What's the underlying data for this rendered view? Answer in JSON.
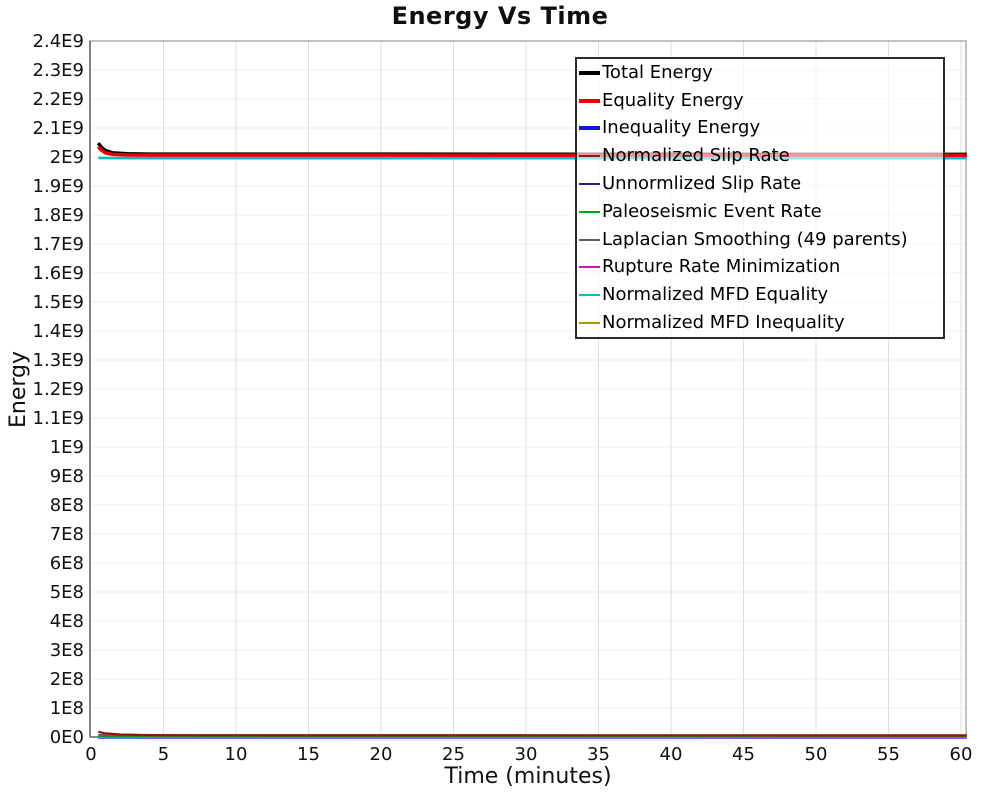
{
  "window": {
    "title": "Energy Vs Time"
  },
  "chart_data": {
    "type": "line",
    "title": "Energy Vs Time",
    "xlabel": "Time (minutes)",
    "ylabel": "Energy",
    "xlim": [
      0,
      60
    ],
    "ylim": [
      0,
      2400000000.0
    ],
    "grid": true,
    "legend_position": "top-right",
    "x_ticks": [
      0,
      5,
      10,
      15,
      20,
      25,
      30,
      35,
      40,
      45,
      50,
      55,
      60
    ],
    "y_tick_values": [
      0,
      100000000.0,
      200000000.0,
      300000000.0,
      400000000.0,
      500000000.0,
      600000000.0,
      700000000.0,
      800000000.0,
      900000000.0,
      1000000000.0,
      1100000000.0,
      1200000000.0,
      1300000000.0,
      1400000000.0,
      1500000000.0,
      1600000000.0,
      1700000000.0,
      1800000000.0,
      1900000000.0,
      2000000000.0,
      2100000000.0,
      2200000000.0,
      2300000000.0,
      2400000000.0
    ],
    "y_tick_labels": [
      "0E0",
      "1E8",
      "2E8",
      "3E8",
      "4E8",
      "5E8",
      "6E8",
      "7E8",
      "8E8",
      "9E8",
      "1E9",
      "1.1E9",
      "1.2E9",
      "1.3E9",
      "1.4E9",
      "1.5E9",
      "1.6E9",
      "1.7E9",
      "1.8E9",
      "1.9E9",
      "2E9",
      "2.1E9",
      "2.2E9",
      "2.3E9",
      "2.4E9"
    ],
    "legend": [
      {
        "label": "Total Energy",
        "color": "#000000",
        "thick": true
      },
      {
        "label": "Equality Energy",
        "color": "#e60000",
        "thick": true
      },
      {
        "label": "Inequality Energy",
        "color": "#1414dc",
        "thick": true
      },
      {
        "label": "Normalized Slip Rate",
        "color": "#9c1010",
        "thick": false
      },
      {
        "label": "Unnormlized Slip Rate",
        "color": "#232390",
        "thick": false
      },
      {
        "label": "Paleoseismic Event Rate",
        "color": "#00a818",
        "thick": false
      },
      {
        "label": "Laplacian Smoothing (49 parents)",
        "color": "#606060",
        "thick": false
      },
      {
        "label": "Rupture Rate Minimization",
        "color": "#c213c2",
        "thick": false
      },
      {
        "label": "Normalized MFD Equality",
        "color": "#00bfbf",
        "thick": false
      },
      {
        "label": "Normalized MFD Inequality",
        "color": "#b39500",
        "thick": false
      }
    ],
    "series": [
      {
        "name": "inequality-energy",
        "color": "#1414dc",
        "width": 3.5,
        "points": [
          [
            0.5,
            300000.0
          ],
          [
            60.4,
            300000.0
          ]
        ]
      },
      {
        "name": "unnormalized-slip-rate",
        "color": "#232390",
        "width": 2.2,
        "points": [
          [
            0.5,
            900000.0
          ],
          [
            60.4,
            900000.0
          ]
        ]
      },
      {
        "name": "rupture-rate-minimization",
        "color": "#c213c2",
        "width": 2.2,
        "points": [
          [
            0.5,
            500000.0
          ],
          [
            60.4,
            500000.0
          ]
        ]
      },
      {
        "name": "normalized-mfd-inequality",
        "color": "#b39500",
        "width": 2.2,
        "points": [
          [
            0.5,
            1800000.0
          ],
          [
            60.4,
            1800000.0
          ]
        ]
      },
      {
        "name": "paleoseismic-event-rate",
        "color": "#00a818",
        "width": 2.2,
        "points": [
          [
            0.5,
            3800000.0
          ],
          [
            60.4,
            3500000.0
          ]
        ]
      },
      {
        "name": "laplacian-smoothing",
        "color": "#606060",
        "width": 2.2,
        "points": [
          [
            0.5,
            6500000.0
          ],
          [
            2,
            5800000.0
          ],
          [
            60.4,
            5500000.0
          ]
        ]
      },
      {
        "name": "normalized-slip-rate",
        "color": "#9c1010",
        "width": 2.2,
        "points": [
          [
            0.5,
            18000000.0
          ],
          [
            1,
            12500000.0
          ],
          [
            2,
            8500000.0
          ],
          [
            4,
            6500000.0
          ],
          [
            8,
            5800000.0
          ],
          [
            60.4,
            5200000.0
          ]
        ]
      },
      {
        "name": "normalized-mfd-equality",
        "color": "#00bfbf",
        "width": 2.6,
        "points": [
          [
            0.5,
            1997000000.0
          ],
          [
            3,
            1996000000.0
          ],
          [
            60.4,
            1996000000.0
          ]
        ]
      },
      {
        "name": "total-energy",
        "color": "#000000",
        "width": 3.5,
        "points": [
          [
            0.5,
            2048000000.0
          ],
          [
            0.7,
            2034000000.0
          ],
          [
            1.0,
            2022000000.0
          ],
          [
            1.5,
            2014000000.0
          ],
          [
            2.5,
            2011000000.0
          ],
          [
            4,
            2010000000.0
          ],
          [
            60.4,
            2009000000.0
          ]
        ]
      },
      {
        "name": "equality-energy",
        "color": "#e60000",
        "width": 3.5,
        "points": [
          [
            0.5,
            2036000000.0
          ],
          [
            0.7,
            2024000000.0
          ],
          [
            1.0,
            2014000000.0
          ],
          [
            1.5,
            2009000000.0
          ],
          [
            2.5,
            2007000000.0
          ],
          [
            4,
            2006500000.0
          ],
          [
            60.4,
            2006000000.0
          ]
        ]
      }
    ]
  }
}
